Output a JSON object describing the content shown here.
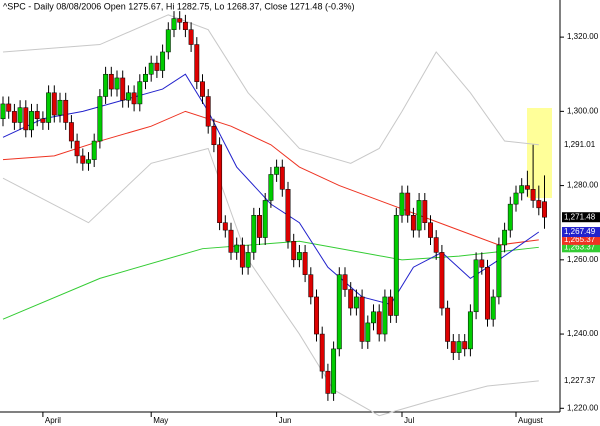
{
  "chart_data": {
    "type": "candlestick",
    "title": "^SPC - Daily 08/08/2006 Open 1275.67, Hi 1282.75, Lo 1268.37, Close 1271.48 (-0.3%)",
    "open": [
      1298,
      1302,
      1300,
      1297,
      1301,
      1295,
      1300,
      1298,
      1297,
      1305,
      1299,
      1303,
      1297,
      1292,
      1288,
      1286,
      1287,
      1292,
      1304,
      1310,
      1306,
      1309,
      1303,
      1305,
      1302,
      1308,
      1310,
      1313,
      1311,
      1316,
      1322,
      1325,
      1324,
      1322,
      1318,
      1308,
      1304,
      1296,
      1291,
      1270,
      1268,
      1262,
      1264,
      1258,
      1262,
      1272,
      1266,
      1276,
      1283,
      1285,
      1279,
      1265,
      1260,
      1262,
      1256,
      1250,
      1240,
      1230,
      1224,
      1236,
      1256,
      1252,
      1247,
      1250,
      1238,
      1243,
      1246,
      1240,
      1250,
      1245,
      1272,
      1278,
      1272,
      1268,
      1276,
      1270,
      1266,
      1262,
      1247,
      1238,
      1235,
      1238,
      1236,
      1246,
      1260,
      1258,
      1244,
      1250,
      1264,
      1268,
      1275,
      1278,
      1280,
      1279,
      1276,
      1275.67
    ],
    "high": [
      1304,
      1304,
      1302,
      1303,
      1303,
      1302,
      1302,
      1300,
      1307,
      1307,
      1305,
      1305,
      1299,
      1294,
      1290,
      1289,
      1294,
      1306,
      1312,
      1312,
      1311,
      1311,
      1307,
      1307,
      1310,
      1312,
      1315,
      1315,
      1318,
      1324,
      1327,
      1327,
      1326,
      1324,
      1320,
      1310,
      1306,
      1298,
      1293,
      1272,
      1270,
      1266,
      1266,
      1264,
      1274,
      1274,
      1278,
      1285,
      1287,
      1287,
      1281,
      1267,
      1264,
      1264,
      1258,
      1252,
      1242,
      1232,
      1238,
      1258,
      1258,
      1254,
      1252,
      1252,
      1245,
      1248,
      1248,
      1252,
      1252,
      1274,
      1280,
      1280,
      1274,
      1278,
      1278,
      1272,
      1268,
      1264,
      1249,
      1240,
      1240,
      1240,
      1248,
      1262,
      1262,
      1260,
      1252,
      1266,
      1270,
      1277,
      1280,
      1282,
      1284,
      1291,
      1280,
      1282.75
    ],
    "low": [
      1296,
      1298,
      1295,
      1295,
      1293,
      1293,
      1296,
      1295,
      1295,
      1297,
      1297,
      1295,
      1290,
      1286,
      1284,
      1284,
      1285,
      1290,
      1302,
      1304,
      1304,
      1301,
      1301,
      1300,
      1300,
      1306,
      1308,
      1309,
      1309,
      1314,
      1320,
      1322,
      1320,
      1316,
      1306,
      1302,
      1294,
      1289,
      1268,
      1266,
      1260,
      1260,
      1256,
      1256,
      1260,
      1264,
      1264,
      1274,
      1281,
      1277,
      1263,
      1258,
      1258,
      1254,
      1248,
      1238,
      1228,
      1222,
      1222,
      1234,
      1250,
      1245,
      1245,
      1236,
      1236,
      1241,
      1238,
      1238,
      1243,
      1243,
      1270,
      1270,
      1266,
      1266,
      1268,
      1264,
      1260,
      1245,
      1236,
      1233,
      1233,
      1234,
      1234,
      1244,
      1256,
      1242,
      1242,
      1248,
      1262,
      1266,
      1273,
      1276,
      1277,
      1274,
      1272,
      1268.37
    ],
    "close": [
      1302,
      1300,
      1297,
      1301,
      1295,
      1300,
      1298,
      1297,
      1305,
      1299,
      1303,
      1297,
      1292,
      1288,
      1286,
      1287,
      1292,
      1304,
      1310,
      1306,
      1309,
      1303,
      1305,
      1302,
      1308,
      1310,
      1313,
      1311,
      1316,
      1322,
      1325,
      1324,
      1322,
      1318,
      1308,
      1304,
      1296,
      1291,
      1270,
      1268,
      1262,
      1264,
      1258,
      1262,
      1272,
      1266,
      1276,
      1283,
      1285,
      1279,
      1265,
      1260,
      1262,
      1256,
      1250,
      1240,
      1230,
      1224,
      1236,
      1256,
      1252,
      1247,
      1250,
      1238,
      1243,
      1246,
      1240,
      1250,
      1245,
      1272,
      1278,
      1272,
      1268,
      1276,
      1270,
      1266,
      1262,
      1247,
      1238,
      1235,
      1238,
      1236,
      1246,
      1260,
      1258,
      1244,
      1250,
      1264,
      1268,
      1275,
      1278,
      1280,
      1279,
      1276,
      1274,
      1271.48
    ],
    "up_color": "#00cc00",
    "down_color": "#dd0000",
    "last_close_label": "1,271.48",
    "ylim": [
      1219,
      1330
    ],
    "yticks": [
      {
        "value": 1220,
        "label": "1,220.00"
      },
      {
        "value": 1240,
        "label": "1,240.00"
      },
      {
        "value": 1260,
        "label": "1,260.00"
      },
      {
        "value": 1280,
        "label": "1,280.00"
      },
      {
        "value": 1300,
        "label": "1,300.00"
      },
      {
        "value": 1320,
        "label": "1,320.00"
      }
    ],
    "xticks": [
      {
        "value": 7,
        "label": "April"
      },
      {
        "value": 26,
        "label": "May"
      },
      {
        "value": 48,
        "label": "Jun"
      },
      {
        "value": 70,
        "label": "Jul"
      },
      {
        "value": 90,
        "label": "August"
      }
    ],
    "overlays": [
      {
        "color": "#c8c8c8",
        "x": [
          0,
          17,
          29,
          36,
          43,
          52,
          61,
          66,
          70,
          76,
          82,
          88,
          94
        ],
        "values": [
          1316,
          1318,
          1326,
          1322,
          1305,
          1290,
          1286,
          1290,
          1300,
          1316,
          1305,
          1292,
          1291.01
        ],
        "last_label": "1,291.01"
      },
      {
        "color": "#c8c8c8",
        "x": [
          0,
          15,
          26,
          36,
          43,
          52,
          58,
          66,
          75,
          85,
          94
        ],
        "values": [
          1282,
          1270,
          1286,
          1290,
          1260,
          1240,
          1225,
          1218,
          1222,
          1226,
          1227.37
        ],
        "last_label": "1,227.37"
      },
      {
        "color": "#33cc33",
        "x": [
          0,
          17,
          35,
          52,
          70,
          80,
          94
        ],
        "values": [
          1244,
          1255,
          1263,
          1265,
          1260,
          1261,
          1263.37
        ],
        "last_label": "1,263.37"
      },
      {
        "color": "#ee3322",
        "x": [
          0,
          9,
          17,
          26,
          32,
          40,
          47,
          52,
          59,
          66,
          73,
          80,
          87,
          94
        ],
        "values": [
          1287,
          1288,
          1292,
          1296,
          1300,
          1296,
          1291,
          1285,
          1280,
          1276,
          1272,
          1268,
          1264,
          1265.37
        ],
        "last_label": "1,265.37"
      },
      {
        "color": "#2222cc",
        "x": [
          0,
          7,
          14,
          21,
          28,
          32,
          36,
          41,
          47,
          52,
          57,
          63,
          68,
          72,
          77,
          82,
          87,
          94
        ],
        "values": [
          1293,
          1298,
          1300,
          1303,
          1306,
          1310,
          1300,
          1285,
          1275,
          1270,
          1258,
          1250,
          1248,
          1258,
          1262,
          1255,
          1260,
          1267.49
        ],
        "last_label": "1,267.49"
      }
    ]
  }
}
